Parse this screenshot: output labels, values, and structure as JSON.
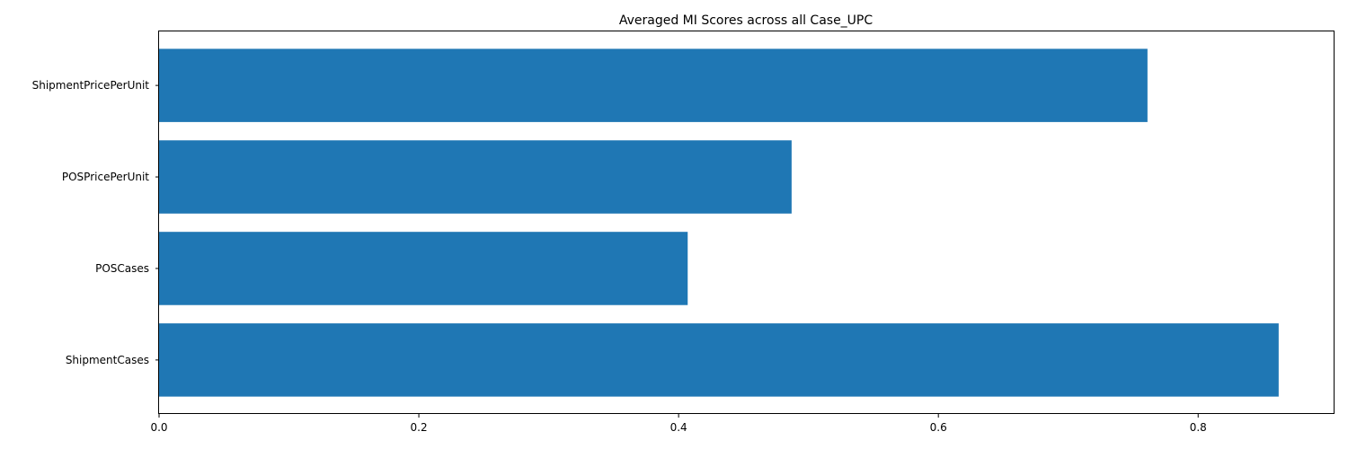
{
  "chart_data": {
    "type": "bar",
    "orientation": "horizontal",
    "title": "Averaged MI Scores across all Case_UPC",
    "xlabel": "",
    "ylabel": "",
    "categories": [
      "ShipmentPricePerUnit",
      "POSPricePerUnit",
      "POSCases",
      "ShipmentCases"
    ],
    "values": [
      0.761,
      0.487,
      0.407,
      0.862
    ],
    "xlim": [
      0.0,
      0.905
    ],
    "xticks": [
      0.0,
      0.2,
      0.4,
      0.6,
      0.8
    ],
    "xtick_labels": [
      "0.0",
      "0.2",
      "0.4",
      "0.6",
      "0.8"
    ],
    "bar_color": "#1f77b4",
    "grid": false
  }
}
